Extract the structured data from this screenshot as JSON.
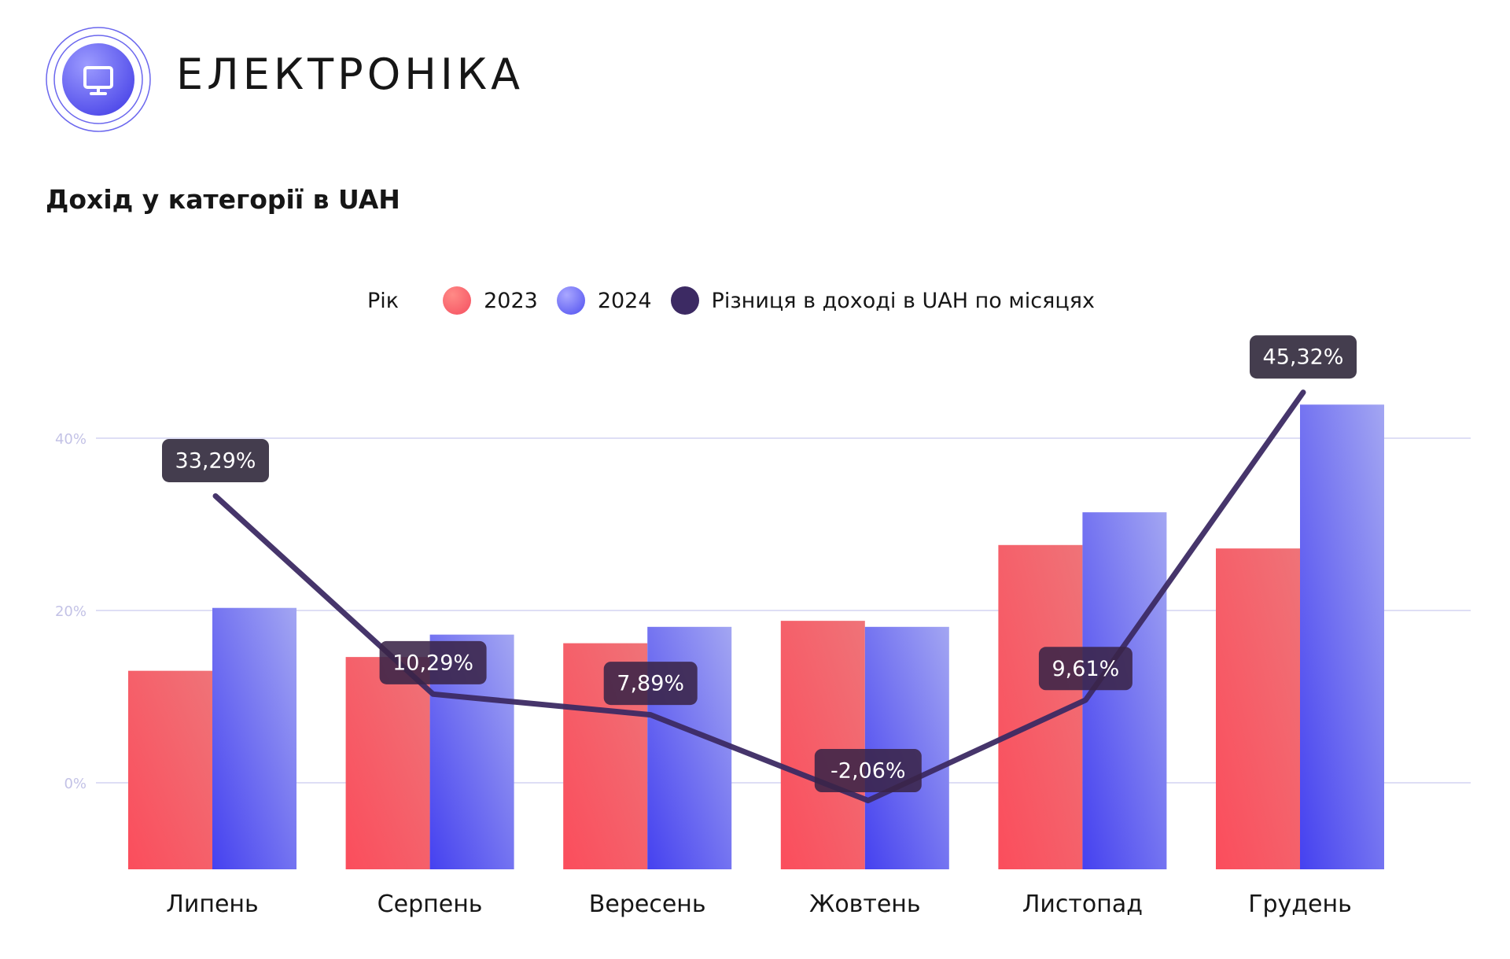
{
  "header": {
    "title": "ЕЛЕКТРОНІКА",
    "logo_icon": "monitor-icon"
  },
  "colors": {
    "color_2023": "#f65c68",
    "color_2024": "#6066f0",
    "color_diff": "#3c2a63",
    "label_bg": "#3a3345",
    "grid": "#d4d3f2"
  },
  "chart_data": {
    "type": "bar",
    "title": "Дохід у категорії в UAH",
    "legend": {
      "title": "Рік",
      "placement": "top-center"
    },
    "categories": [
      "Липень",
      "Серпень",
      "Вересень",
      "Жовтень",
      "Листопад",
      "Грудень"
    ],
    "series": [
      {
        "name": "2023",
        "kind": "bar",
        "values": [
          13,
          14.6,
          16.2,
          18.8,
          27.6,
          27.2
        ]
      },
      {
        "name": "2024",
        "kind": "bar",
        "values": [
          20.3,
          17.2,
          18.1,
          18.1,
          31.4,
          43.9
        ]
      },
      {
        "name": "Різниця в доході в UAH по місяцях",
        "kind": "line",
        "values": [
          33.29,
          10.29,
          7.89,
          -2.06,
          9.61,
          45.32
        ],
        "labels": [
          "33,29%",
          "10,29%",
          "7,89%",
          "-2,06%",
          "9,61%",
          "45,32%"
        ]
      }
    ],
    "y_axis": {
      "ticks": [
        0,
        20,
        40
      ],
      "tick_labels": [
        "0%",
        "20%",
        "40%"
      ],
      "ylim": [
        -10,
        48
      ]
    },
    "grid": true
  }
}
